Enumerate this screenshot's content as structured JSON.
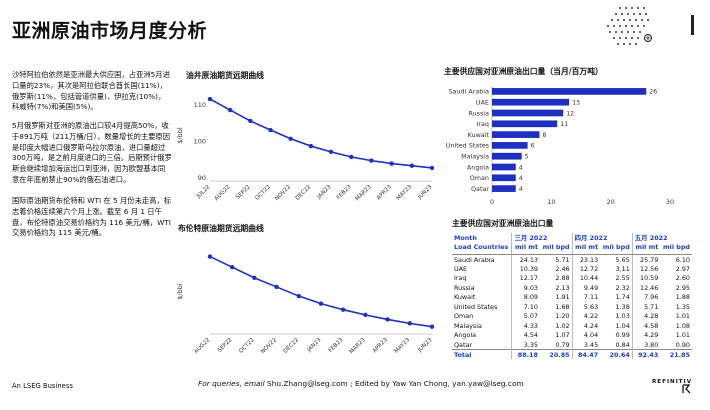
{
  "page": {
    "title": "亚洲原油市场月度分析"
  },
  "paragraphs": [
    "沙特阿拉伯依然是亚洲最大供应国，占亚洲5月进口量的23%，其次是阿拉伯联合酋长国(11%)，俄罗斯(11%，包括管道供量)，伊拉克(10%)，科威特(7%)和美国(5%)。",
    "5月俄罗斯对亚洲的原油出口较4月提高50%，收于891万吨（211万桶/日），数量增长的主要原因是印度大幅进口俄罗斯乌拉尔原油，进口量超过300万吨，是之前月度进口的三倍。后期预计俄罗斯会继续增加海运出口到亚洲，因为欧盟基本同意在年底前禁止90%的俄石油进口。",
    "国际原油期货布伦特和 WTI 在 5 月份未走高，标志着价格连续第六个月上涨。截至 6 月 1 日午盘，布伦特原油交易价格约为 116 美元/桶，WTI 交易价格约为 115 美元/桶。"
  ],
  "wti_chart": {
    "title": "油井原油期货远期曲线"
  },
  "brent_chart": {
    "title": "布伦特原油期货远期曲线"
  },
  "bar_chart": {
    "title": "主要供应国对亚洲原油出口量（当月/百万吨）"
  },
  "chart_data": [
    {
      "type": "line",
      "title": "油井原油期货远期曲线",
      "ylabel": "$/bbl",
      "x": [
        "JUL22",
        "AUG22",
        "SEP22",
        "OCT22",
        "NOV22",
        "DEC22",
        "JAN23",
        "FEB23",
        "MAR23",
        "APR23",
        "MAY23",
        "JUN23"
      ],
      "y": [
        111.5,
        108.5,
        105.5,
        103.0,
        100.6,
        98.6,
        97.0,
        95.6,
        94.6,
        93.8,
        93.2,
        92.6
      ],
      "yticks": [
        90,
        100,
        110
      ],
      "ylim": [
        89,
        114
      ],
      "color": "#1f2fbf",
      "grid": false
    },
    {
      "type": "line",
      "title": "布伦特原油期货远期曲线",
      "ylabel": "$/bbl",
      "x": [
        "AUG22",
        "SEP22",
        "OCT22",
        "NOV22",
        "DEC22",
        "JAN23",
        "FEB23",
        "MAR23",
        "APR23",
        "MAY23",
        "JUN23"
      ],
      "y": [
        113.5,
        110.0,
        106.5,
        103.5,
        100.5,
        98.0,
        96.0,
        94.3,
        92.8,
        91.5,
        90.4
      ],
      "ylim": [
        88,
        116
      ],
      "color": "#1f2fbf",
      "grid": false
    },
    {
      "type": "bar",
      "title": "主要供应国对亚洲原油出口量（当月/百万吨）",
      "orientation": "horizontal",
      "categories": [
        "Saudi Arabia",
        "UAE",
        "Russia",
        "Iraq",
        "Kuwait",
        "United States",
        "Malaysia",
        "Angola",
        "Oman",
        "Qatar"
      ],
      "values": [
        26,
        13,
        12,
        11,
        8,
        6,
        5,
        4,
        4,
        4
      ],
      "xticks": [
        0,
        10,
        20,
        30
      ],
      "xlim": [
        0,
        30
      ],
      "color": "#1f2fbf",
      "grid": false
    }
  ],
  "table": {
    "title": "主要供应国对亚洲原油出口量",
    "month_label": "Month",
    "months": [
      "三月 2022",
      "四月 2022",
      "五月 2022"
    ],
    "country_header": "Load Countries",
    "units": [
      "mil mt",
      "mil bpd",
      "mil mt",
      "mil bpd",
      "mil mt",
      "mil bpd"
    ],
    "rows": [
      {
        "country": "Saudi Arabia",
        "vals": [
          "24.13",
          "5.71",
          "23.13",
          "5.65",
          "25.79",
          "6.10"
        ]
      },
      {
        "country": "UAE",
        "vals": [
          "10.39",
          "2.46",
          "12.72",
          "3.11",
          "12.56",
          "2.97"
        ]
      },
      {
        "country": "Iraq",
        "vals": [
          "12.17",
          "2.88",
          "10.44",
          "2.55",
          "10.59",
          "2.60"
        ]
      },
      {
        "country": "Russia",
        "vals": [
          "9.03",
          "2.13",
          "9.49",
          "2.32",
          "12.46",
          "2.95"
        ]
      },
      {
        "country": "Kuwait",
        "vals": [
          "8.09",
          "1.91",
          "7.11",
          "1.74",
          "7.96",
          "1.88"
        ]
      },
      {
        "country": "United States",
        "vals": [
          "7.10",
          "1.68",
          "5.63",
          "1.38",
          "5.71",
          "1.35"
        ]
      },
      {
        "country": "Oman",
        "vals": [
          "5.07",
          "1.20",
          "4.22",
          "1.03",
          "4.28",
          "1.01"
        ]
      },
      {
        "country": "Malaysia",
        "vals": [
          "4.33",
          "1.02",
          "4.24",
          "1.04",
          "4.58",
          "1.08"
        ]
      },
      {
        "country": "Angola",
        "vals": [
          "4.54",
          "1.07",
          "4.04",
          "0.99",
          "4.29",
          "1.01"
        ]
      },
      {
        "country": "Qatar",
        "vals": [
          "3.35",
          "0.79",
          "3.45",
          "0.84",
          "3.80",
          "0.90"
        ]
      }
    ],
    "total": {
      "country": "Total",
      "vals": [
        "88.18",
        "20.85",
        "84.47",
        "20.64",
        "92.43",
        "21.85"
      ]
    }
  },
  "footer": {
    "left": "An LSEG Business",
    "prefix": "For queries, email ",
    "email1": "Shu.Zhang@lseg.com",
    "middle": " ; Edited by Yaw Yan Chong, ",
    "email2": "yan.yaw@lseg.com",
    "logo": "REFINITIV"
  }
}
